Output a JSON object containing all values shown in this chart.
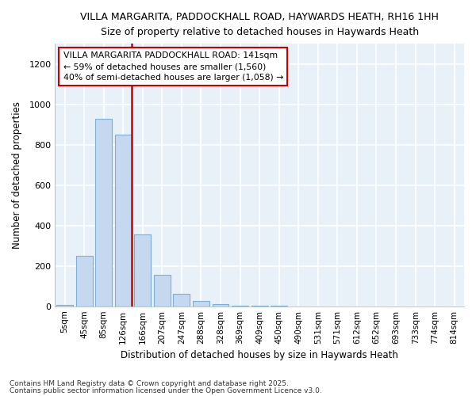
{
  "title": "VILLA MARGARITA, PADDOCKHALL ROAD, HAYWARDS HEATH, RH16 1HH",
  "subtitle": "Size of property relative to detached houses in Haywards Heath",
  "xlabel": "Distribution of detached houses by size in Haywards Heath",
  "ylabel": "Number of detached properties",
  "bar_color": "#c5d8f0",
  "bar_edge_color": "#7bafd4",
  "vline_color": "#cc0000",
  "annotation_text": "VILLA MARGARITA PADDOCKHALL ROAD: 141sqm\n← 59% of detached houses are smaller (1,560)\n40% of semi-detached houses are larger (1,058) →",
  "annotation_box_color": "#cc0000",
  "categories": [
    "5sqm",
    "45sqm",
    "85sqm",
    "126sqm",
    "166sqm",
    "207sqm",
    "247sqm",
    "288sqm",
    "328sqm",
    "369sqm",
    "409sqm",
    "450sqm",
    "490sqm",
    "531sqm",
    "571sqm",
    "612sqm",
    "652sqm",
    "693sqm",
    "733sqm",
    "774sqm",
    "814sqm"
  ],
  "values": [
    5,
    248,
    928,
    848,
    355,
    155,
    62,
    28,
    10,
    2,
    2,
    1,
    0,
    0,
    0,
    0,
    0,
    0,
    0,
    0,
    0
  ],
  "ylim": [
    0,
    1300
  ],
  "yticks": [
    0,
    200,
    400,
    600,
    800,
    1000,
    1200
  ],
  "grid_color": "#d0dff0",
  "background_color": "#e8f0f8",
  "footer1": "Contains HM Land Registry data © Crown copyright and database right 2025.",
  "footer2": "Contains public sector information licensed under the Open Government Licence v3.0."
}
